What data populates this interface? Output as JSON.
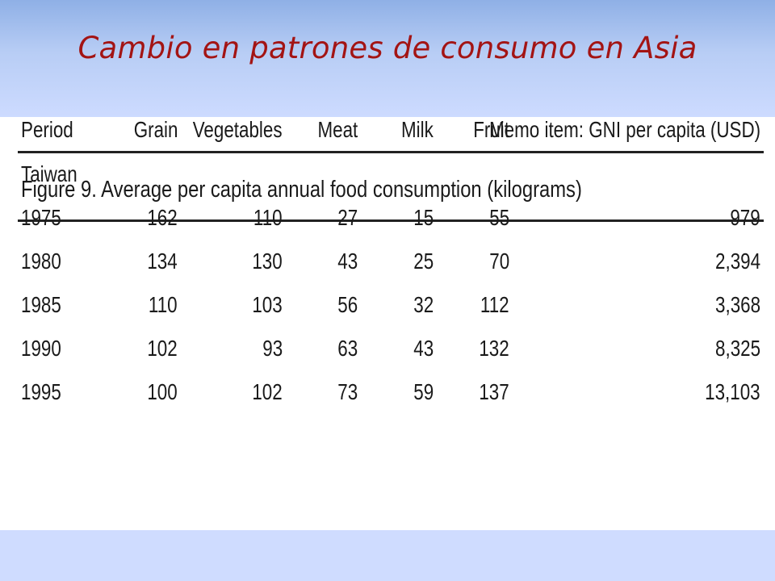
{
  "slide": {
    "title": "Cambio en patrones de consumo en Asia"
  },
  "figure": {
    "caption": "Figure 9. Average per capita annual food consumption (kilograms)",
    "columns": [
      "Period",
      "Grain",
      "Vegetables",
      "Meat",
      "Milk",
      "Fruit",
      "Memo item: GNI per capita (USD)"
    ],
    "group_label": "Taiwan",
    "rows": [
      [
        "1975",
        "162",
        "110",
        "27",
        "15",
        "55",
        "979"
      ],
      [
        "1980",
        "134",
        "130",
        "43",
        "25",
        "70",
        "2,394"
      ],
      [
        "1985",
        "110",
        "103",
        "56",
        "32",
        "112",
        "3,368"
      ],
      [
        "1990",
        "102",
        "93",
        "63",
        "43",
        "132",
        "8,325"
      ],
      [
        "1995",
        "100",
        "102",
        "73",
        "59",
        "137",
        "13,103"
      ]
    ]
  }
}
